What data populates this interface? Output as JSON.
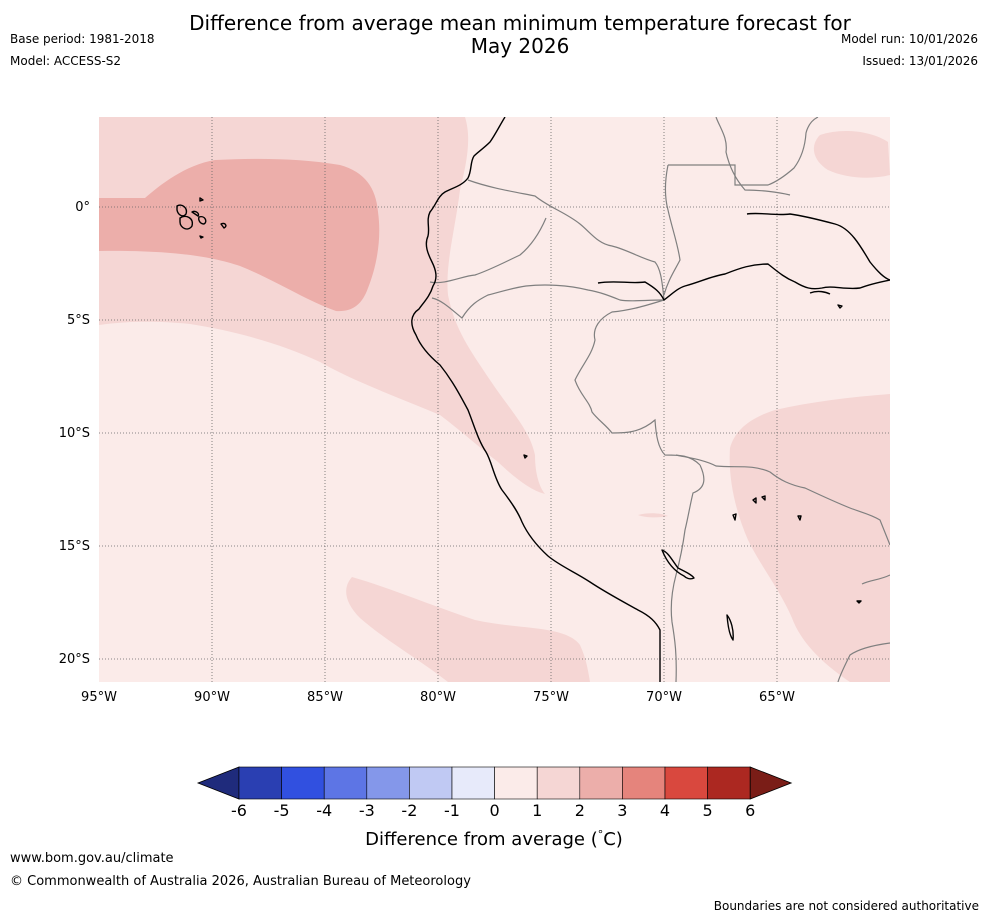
{
  "header": {
    "title_line1": "Difference from average mean minimum temperature forecast for",
    "title_line2": "May 2026",
    "base_period": "Base period: 1981-2018",
    "model": "Model: ACCESS-S2",
    "model_run": "Model run: 10/01/2026",
    "issued": "Issued: 13/01/2026"
  },
  "map": {
    "lon_labels": [
      "95°W",
      "90°W",
      "85°W",
      "80°W",
      "75°W",
      "70°W",
      "65°W"
    ],
    "lat_labels": [
      "0°",
      "5°S",
      "10°S",
      "15°S",
      "20°S"
    ],
    "colors": {
      "anom_0_1": "#fbebe9",
      "anom_1_2": "#f5d6d4",
      "anom_2_3": "#ecaeaa",
      "coast": "#000000",
      "border": "#7f7f7f",
      "grid": "#666666"
    }
  },
  "legend": {
    "tick_labels": [
      "-6",
      "-5",
      "-4",
      "-3",
      "-2",
      "-1",
      "0",
      "1",
      "2",
      "3",
      "4",
      "5",
      "6"
    ],
    "colors": [
      "#1f2b7c",
      "#2a3fb2",
      "#3150e0",
      "#5d75e5",
      "#8497ea",
      "#c0c9f3",
      "#e7eafa",
      "#fbebe9",
      "#f5d6d4",
      "#ecaeaa",
      "#e5847c",
      "#d9483e",
      "#ac2821",
      "#7a1d17"
    ],
    "label": "Difference from average (",
    "unit_degree": "°",
    "unit_symbol": "C)"
  },
  "footer": {
    "url": "www.bom.gov.au/climate",
    "copyright": "© Commonwealth of Australia 2026, Australian Bureau of Meteorology",
    "note": "Boundaries are not considered authoritative"
  }
}
